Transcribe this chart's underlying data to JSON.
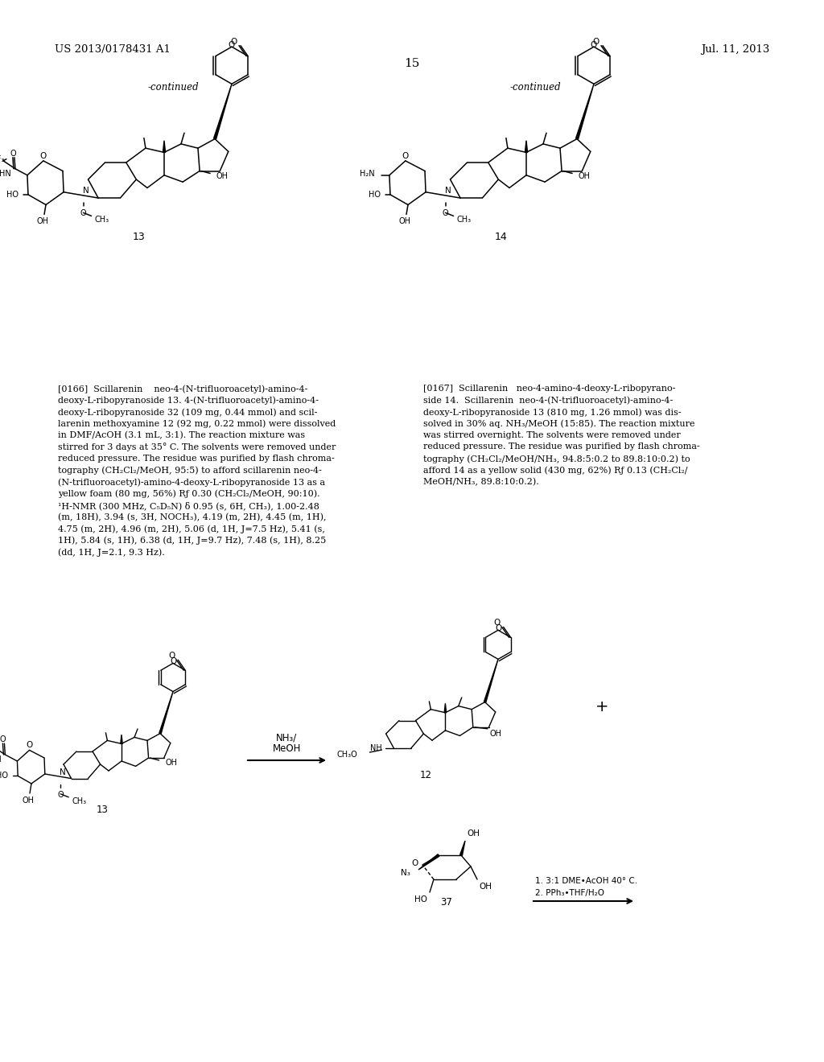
{
  "bg_color": "#ffffff",
  "header_left": "US 2013/0178431 A1",
  "header_right": "Jul. 11, 2013",
  "page_number": "15",
  "continued_left": "-continued",
  "continued_right": "-continued",
  "lines_166": [
    "[0166]  Scillarenin    neo-4-(N-trifluoroacetyl)-amino-4-",
    "deoxy-L-ribopyranoside 13. 4-(N-trifluoroacetyl)-amino-4-",
    "deoxy-L-ribopyranoside 32 (109 mg, 0.44 mmol) and scil-",
    "larenin methoxyamine 12 (92 mg, 0.22 mmol) were dissolved",
    "in DMF/AcOH (3.1 mL, 3:1). The reaction mixture was",
    "stirred for 3 days at 35° C. The solvents were removed under",
    "reduced pressure. The residue was purified by flash chroma-",
    "tography (CH₂Cl₂/MeOH, 95:5) to afford scillarenin neo-4-",
    "(N-trifluoroacetyl)-amino-4-deoxy-L-ribopyranoside 13 as a",
    "yellow foam (80 mg, 56%) Rƒ 0.30 (CH₂Cl₂/MeOH, 90:10).",
    "¹H-NMR (300 MHz, C₅D₅N) δ 0.95 (s, 6H, CH₃), 1.00-2.48",
    "(m, 18H), 3.94 (s, 3H, NOCH₃), 4.19 (m, 2H), 4.45 (m, 1H),",
    "4.75 (m, 2H), 4.96 (m, 2H), 5.06 (d, 1H, J=7.5 Hz), 5.41 (s,",
    "1H), 5.84 (s, 1H), 6.38 (d, 1H, J=9.7 Hz), 7.48 (s, 1H), 8.25",
    "(dd, 1H, J=2.1, 9.3 Hz)."
  ],
  "lines_167": [
    "[0167]  Scillarenin   neo-4-amino-4-deoxy-L-ribopyrano-",
    "side 14.  Scillarenin  neo-4-(N-trifluoroacetyl)-amino-4-",
    "deoxy-L-ribopyranoside 13 (810 mg, 1.26 mmol) was dis-",
    "solved in 30% aq. NH₃/MeOH (15:85). The reaction mixture",
    "was stirred overnight. The solvents were removed under",
    "reduced pressure. The residue was purified by flash chroma-",
    "tography (CH₂Cl₂/MeOH/NH₃, 94.8:5:0.2 to 89.8:10:0.2) to",
    "afford 14 as a yellow solid (430 mg, 62%) Rƒ 0.13 (CH₂Cl₂/",
    "MeOH/NH₃, 89.8:10:0.2)."
  ]
}
